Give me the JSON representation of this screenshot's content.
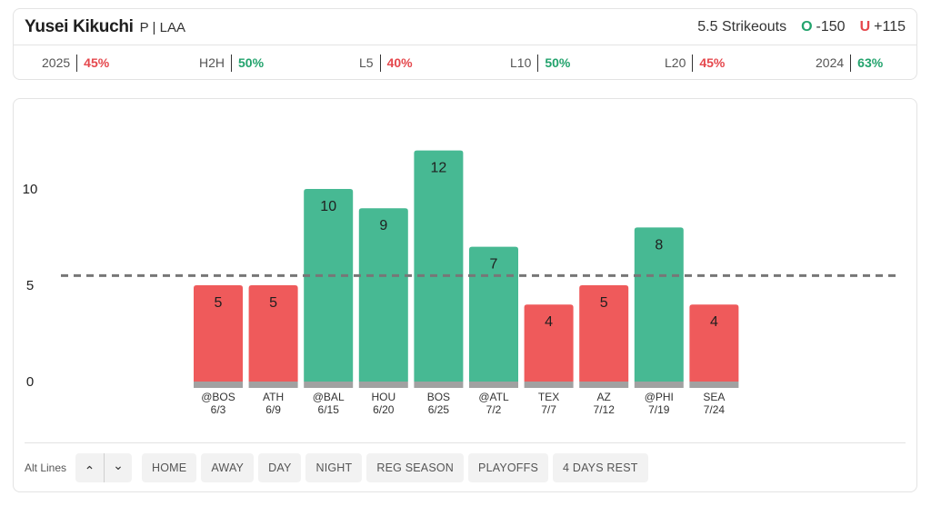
{
  "player": {
    "name": "Yusei Kikuchi",
    "meta": "P | LAA"
  },
  "line": {
    "prop": "5.5 Strikeouts",
    "over_letter": "O",
    "over_odds": "-150",
    "under_letter": "U",
    "under_odds": "+115"
  },
  "stats": [
    {
      "label": "2025",
      "value": "45%",
      "status": "red"
    },
    {
      "label": "H2H",
      "value": "50%",
      "status": "green"
    },
    {
      "label": "L5",
      "value": "40%",
      "status": "red"
    },
    {
      "label": "L10",
      "value": "50%",
      "status": "green"
    },
    {
      "label": "L20",
      "value": "45%",
      "status": "red"
    },
    {
      "label": "2024",
      "value": "63%",
      "status": "green"
    }
  ],
  "colors": {
    "over": "#47b993",
    "under": "#ef5a5b",
    "base": "#a1a1a1",
    "threshold": "#777777"
  },
  "chart_data": {
    "type": "bar",
    "categories": [
      "@BOS",
      "ATH",
      "@BAL",
      "HOU",
      "BOS",
      "@ATL",
      "TEX",
      "AZ",
      "@PHI",
      "SEA"
    ],
    "dates": [
      "6/3",
      "6/9",
      "6/15",
      "6/20",
      "6/25",
      "7/2",
      "7/7",
      "7/12",
      "7/19",
      "7/24"
    ],
    "values": [
      5,
      5,
      10,
      9,
      12,
      7,
      4,
      5,
      8,
      4
    ],
    "labels": [
      "5",
      "5",
      "10",
      "9",
      "12",
      "7",
      "4",
      "5",
      "8",
      "4"
    ],
    "threshold": 5.5,
    "yticks": [
      0,
      5,
      10
    ],
    "ytick_labels": [
      "0",
      "5",
      "10"
    ],
    "ylim": [
      0,
      13
    ],
    "title": "",
    "xlabel": "",
    "ylabel": ""
  },
  "controls": {
    "alt_lines_label": "Alt Lines",
    "up_icon": "chevron-up-icon",
    "down_icon": "chevron-down-icon",
    "up_glyph": "⌃",
    "down_glyph": "⌄",
    "filters": [
      "HOME",
      "AWAY",
      "DAY",
      "NIGHT",
      "REG SEASON",
      "PLAYOFFS",
      "4 DAYS REST"
    ]
  }
}
